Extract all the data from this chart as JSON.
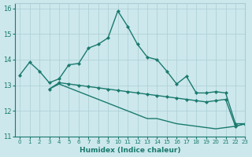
{
  "xlabel": "Humidex (Indice chaleur)",
  "background_color": "#cce8ec",
  "grid_color": "#aacdd4",
  "line_color": "#1a7a6e",
  "xlim": [
    -0.5,
    23
  ],
  "ylim": [
    11,
    16.2
  ],
  "xticks": [
    0,
    1,
    2,
    3,
    4,
    5,
    6,
    7,
    8,
    9,
    10,
    11,
    12,
    13,
    14,
    15,
    16,
    17,
    18,
    19,
    20,
    21,
    22,
    23
  ],
  "yticks": [
    11,
    12,
    13,
    14,
    15,
    16
  ],
  "line1_x": [
    0,
    1,
    2,
    3,
    4,
    5,
    6,
    7,
    8,
    9,
    10,
    11,
    12,
    13,
    14,
    15,
    16,
    17,
    18,
    19,
    20,
    21,
    22,
    23
  ],
  "line1_y": [
    13.4,
    13.9,
    13.55,
    13.1,
    13.25,
    13.8,
    13.85,
    14.45,
    14.6,
    14.85,
    15.9,
    15.3,
    14.6,
    14.1,
    14.0,
    13.55,
    13.05,
    13.35,
    12.7,
    12.7,
    12.75,
    12.7,
    11.5,
    11.5
  ],
  "line2_x": [
    3,
    4,
    5,
    6,
    7,
    8,
    9,
    10,
    11,
    12,
    13,
    14,
    15,
    16,
    17,
    18,
    19,
    20,
    21,
    22,
    23
  ],
  "line2_y": [
    12.85,
    13.1,
    13.05,
    13.0,
    12.95,
    12.9,
    12.85,
    12.8,
    12.75,
    12.7,
    12.65,
    12.6,
    12.55,
    12.5,
    12.45,
    12.4,
    12.35,
    12.4,
    12.45,
    11.4,
    11.5
  ],
  "line3_x": [
    3,
    4,
    5,
    6,
    7,
    8,
    9,
    10,
    11,
    12,
    13,
    14,
    15,
    16,
    17,
    18,
    19,
    20,
    21,
    22,
    23
  ],
  "line3_y": [
    12.85,
    13.05,
    12.9,
    12.75,
    12.6,
    12.45,
    12.3,
    12.15,
    12.0,
    11.85,
    11.7,
    11.7,
    11.6,
    11.5,
    11.45,
    11.4,
    11.35,
    11.3,
    11.35,
    11.4,
    11.5
  ]
}
